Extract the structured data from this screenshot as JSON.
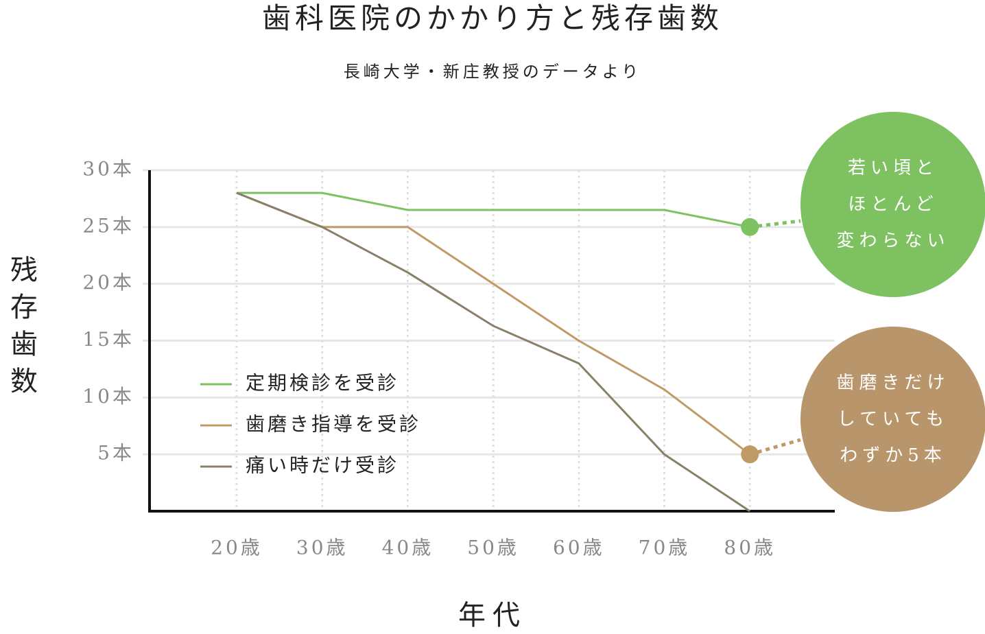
{
  "chart_data": {
    "type": "line",
    "title": "歯科医院のかかり方と残存歯数",
    "subtitle": "長崎大学・新庄教授のデータより",
    "y_label": "残存歯数",
    "x_label": "年代",
    "categories": [
      "20歳",
      "30歳",
      "40歳",
      "50歳",
      "60歳",
      "70歳",
      "80歳"
    ],
    "series": [
      {
        "name": "定期検診を受診",
        "color": "#7dc160",
        "values": [
          28,
          28,
          26.5,
          26.5,
          26.5,
          26.5,
          25
        ]
      },
      {
        "name": "歯磨き指導を受診",
        "color": "#c09a66",
        "values": [
          28,
          25,
          25,
          20,
          15,
          10.7,
          5
        ]
      },
      {
        "name": "痛い時だけ受診",
        "color": "#8a7f68",
        "values": [
          28,
          25,
          21,
          16.3,
          13,
          5,
          0
        ]
      }
    ],
    "ylim": [
      0,
      30
    ],
    "yticks": [
      {
        "value": 30,
        "label": "30本"
      },
      {
        "value": 25,
        "label": "25本"
      },
      {
        "value": 20,
        "label": "20本"
      },
      {
        "value": 15,
        "label": "15本"
      },
      {
        "value": 10,
        "label": "10本"
      },
      {
        "value": 5,
        "label": "5本"
      }
    ],
    "grid": true,
    "annotations": [
      {
        "series": 0,
        "lines": [
          "若い頃と",
          "ほとんど",
          "変わらない"
        ],
        "color": "#7dc160"
      },
      {
        "series": 1,
        "lines": [
          "歯磨きだけ",
          "していても",
          "わずか5本"
        ],
        "color": "#b8956a"
      }
    ]
  }
}
